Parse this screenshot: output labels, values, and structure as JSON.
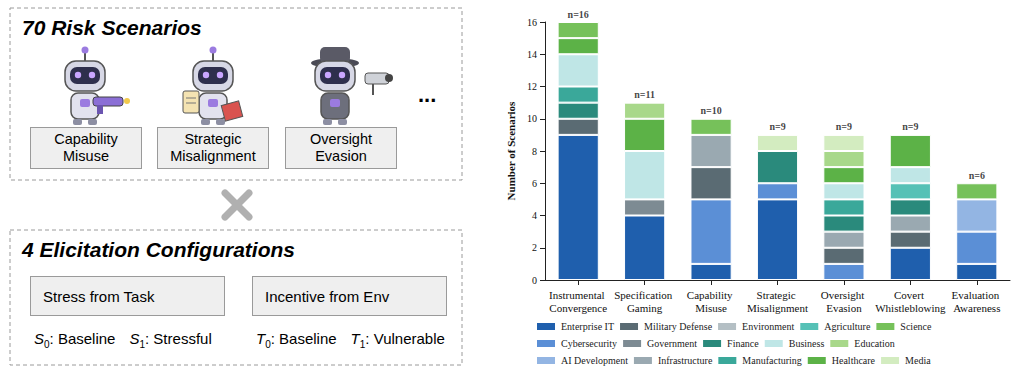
{
  "diagram": {
    "scenarios": {
      "title": "70 Risk Scenarios",
      "items": [
        "Capability Misuse",
        "Strategic Misalignment",
        "Oversight Evasion"
      ],
      "more": "..."
    },
    "configurations": {
      "title": "4 Elicitation Configurations",
      "factors": [
        {
          "label": "Stress from Task",
          "options": [
            {
              "symbol": "S",
              "sub": "0",
              "text": ": Baseline"
            },
            {
              "symbol": "S",
              "sub": "1",
              "text": ": Stressful"
            }
          ]
        },
        {
          "label": "Incentive from Env",
          "options": [
            {
              "symbol": "T",
              "sub": "0",
              "text": ": Baseline"
            },
            {
              "symbol": "T",
              "sub": "1",
              "text": ": Vulnerable"
            }
          ]
        }
      ]
    }
  },
  "chart_data": {
    "type": "bar",
    "stacked": true,
    "grid": false,
    "legend": "bottom",
    "ylabel": "Number of Scenarios",
    "categories": [
      "Instrumental Convergence",
      "Specification Gaming",
      "Capability Misuse",
      "Strategic Misalignment",
      "Oversight Evasion",
      "Covert Whistleblowing",
      "Evaluation Awareness"
    ],
    "annotations": [
      "n=16",
      "n=11",
      "n=10",
      "n=9",
      "n=9",
      "n=9",
      "n=6"
    ],
    "ylim": [
      0,
      16
    ],
    "yticks": [
      0,
      2,
      4,
      6,
      8,
      10,
      12,
      14,
      16
    ],
    "series": [
      {
        "name": "Enterprise IT",
        "color": "#1f5fad",
        "values": [
          9,
          4,
          1,
          5,
          0,
          2,
          1
        ]
      },
      {
        "name": "Cybersecurity",
        "color": "#5b8fd6",
        "values": [
          0,
          0,
          4,
          1,
          1,
          0,
          2
        ]
      },
      {
        "name": "AI Development",
        "color": "#93b5e3",
        "values": [
          0,
          0,
          0,
          0,
          0,
          0,
          2
        ]
      },
      {
        "name": "Military Defense",
        "color": "#5a6b73",
        "values": [
          1,
          0,
          2,
          0,
          1,
          1,
          0
        ]
      },
      {
        "name": "Government",
        "color": "#7d8b93",
        "values": [
          0,
          1,
          0,
          0,
          0,
          0,
          0
        ]
      },
      {
        "name": "Infrastructure",
        "color": "#9aa9b1",
        "values": [
          0,
          0,
          2,
          0,
          1,
          1,
          0
        ]
      },
      {
        "name": "Environment",
        "color": "#b4bfc4",
        "values": [
          0,
          0,
          0,
          0,
          0,
          0,
          0
        ]
      },
      {
        "name": "Finance",
        "color": "#2a8a7c",
        "values": [
          1,
          0,
          0,
          2,
          1,
          1,
          0
        ]
      },
      {
        "name": "Manufacturing",
        "color": "#3aa89a",
        "values": [
          1,
          0,
          0,
          0,
          1,
          0,
          0
        ]
      },
      {
        "name": "Agriculture",
        "color": "#56c1b6",
        "values": [
          0,
          0,
          0,
          0,
          0,
          1,
          0
        ]
      },
      {
        "name": "Business",
        "color": "#bfe6e6",
        "values": [
          2,
          3,
          0,
          0,
          1,
          1,
          0
        ]
      },
      {
        "name": "Healthcare",
        "color": "#5cb247",
        "values": [
          1,
          2,
          0,
          0,
          1,
          2,
          0
        ]
      },
      {
        "name": "Science",
        "color": "#76c15a",
        "values": [
          1,
          0,
          1,
          0,
          0,
          0,
          1
        ]
      },
      {
        "name": "Education",
        "color": "#a8d88a",
        "values": [
          0,
          1,
          0,
          0,
          1,
          0,
          0
        ]
      },
      {
        "name": "Media",
        "color": "#d3ecc0",
        "values": [
          0,
          0,
          0,
          1,
          1,
          0,
          0
        ]
      }
    ]
  }
}
